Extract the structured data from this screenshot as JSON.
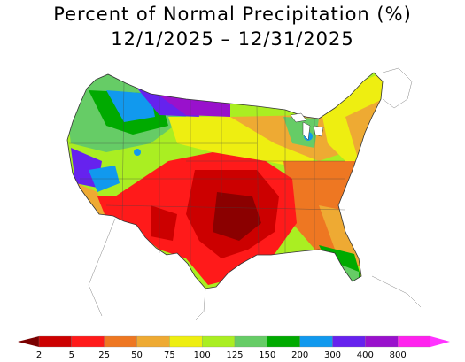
{
  "title": {
    "line1": "Percent of Normal Precipitation (%)",
    "line2": "12/1/2025 – 12/31/2025"
  },
  "legend": {
    "ticks": [
      "2",
      "5",
      "25",
      "50",
      "75",
      "100",
      "125",
      "150",
      "200",
      "300",
      "400",
      "800"
    ],
    "colors": [
      "#8b0000",
      "#cc0000",
      "#ff1a1a",
      "#ee7722",
      "#eeaa33",
      "#eeee11",
      "#aaee22",
      "#66cc66",
      "#00aa00",
      "#1199ee",
      "#6622ee",
      "#9911cc",
      "#ff22ee"
    ],
    "under_color": "#7a0000",
    "over_color": "#ff33ff"
  }
}
